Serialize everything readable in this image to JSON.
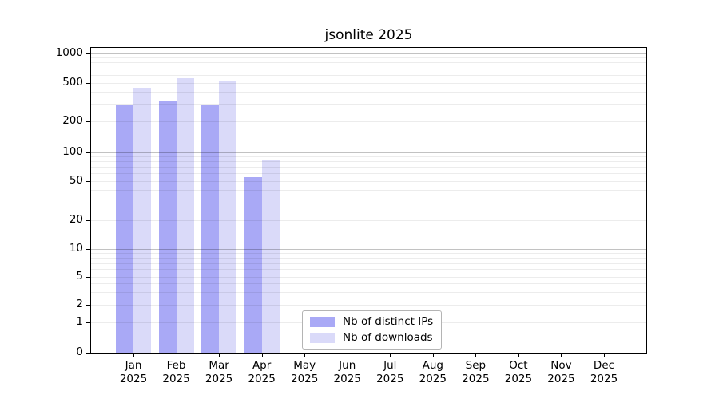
{
  "chart_data": {
    "type": "bar",
    "title": "jsonlite 2025",
    "categories": [
      "Jan 2025",
      "Feb 2025",
      "Mar 2025",
      "Apr 2025",
      "May 2025",
      "Jun 2025",
      "Jul 2025",
      "Aug 2025",
      "Sep 2025",
      "Oct 2025",
      "Nov 2025",
      "Dec 2025"
    ],
    "series": [
      {
        "name": "Nb of distinct IPs",
        "color": "#a9a9f6",
        "values": [
          300,
          320,
          300,
          55,
          null,
          null,
          null,
          null,
          null,
          null,
          null,
          null
        ]
      },
      {
        "name": "Nb of downloads",
        "color": "#dadaf9",
        "values": [
          445,
          560,
          525,
          82,
          null,
          null,
          null,
          null,
          null,
          null,
          null,
          null
        ]
      }
    ],
    "y_ticks": [
      0,
      1,
      2,
      5,
      10,
      20,
      50,
      100,
      200,
      500,
      1000
    ],
    "y_scale": "symlog",
    "ylim": [
      0,
      1150
    ],
    "xlabel": "",
    "ylabel": "",
    "grid": true,
    "legend_position": "lower-center-inside"
  },
  "colors": {
    "bar_distinct_ips": "#a9a9f6",
    "bar_downloads": "#dadaf9",
    "grid_minor": "#ececec",
    "grid_major": "#c2c2c2",
    "axis": "#000000",
    "background": "#ffffff"
  }
}
